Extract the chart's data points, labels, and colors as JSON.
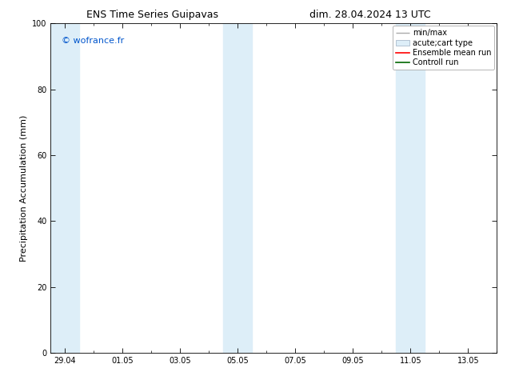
{
  "title_left": "ENS Time Series Guipavas",
  "title_right": "dim. 28.04.2024 13 UTC",
  "ylabel": "Precipitation Accumulation (mm)",
  "ylim": [
    0,
    100
  ],
  "yticks": [
    0,
    20,
    40,
    60,
    80,
    100
  ],
  "xtick_labels": [
    "29.04",
    "01.05",
    "03.05",
    "05.05",
    "07.05",
    "09.05",
    "11.05",
    "13.05"
  ],
  "xtick_positions": [
    0,
    2,
    4,
    6,
    8,
    10,
    12,
    14
  ],
  "x_min": -0.5,
  "x_max": 15.0,
  "shaded_bands": [
    {
      "x_start": -0.5,
      "x_end": 0.5,
      "color": "#ddeef8"
    },
    {
      "x_start": 5.5,
      "x_end": 6.5,
      "color": "#ddeef8"
    },
    {
      "x_start": 11.5,
      "x_end": 12.5,
      "color": "#ddeef8"
    }
  ],
  "watermark_text": "© wofrance.fr",
  "watermark_color": "#0055cc",
  "background_color": "#ffffff",
  "legend_entries": [
    {
      "label": "min/max",
      "type": "minmax",
      "color": "#aaaaaa"
    },
    {
      "label": "acute;cart type",
      "type": "box",
      "color": "#ddeef8"
    },
    {
      "label": "Ensemble mean run",
      "type": "line",
      "color": "#ff0000"
    },
    {
      "label": "Controll run",
      "type": "line",
      "color": "#006600"
    }
  ],
  "title_fontsize": 9,
  "tick_fontsize": 7,
  "ylabel_fontsize": 8,
  "legend_fontsize": 7,
  "watermark_fontsize": 8
}
